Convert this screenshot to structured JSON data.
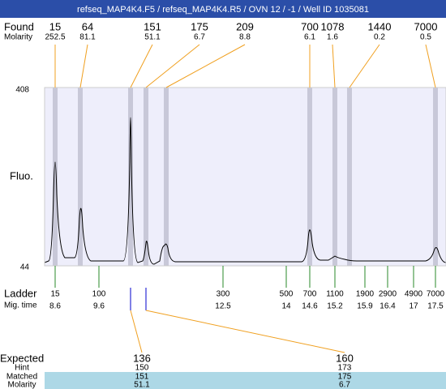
{
  "header": {
    "title": "refseq_MAP4K4.F5 / refseq_MAP4K4.R5 / OVN 12 / -1 / Well ID 1035081"
  },
  "found": {
    "label": "Found",
    "molarity_label": "Molarity",
    "peaks": [
      {
        "size": "15",
        "molarity": "252.5"
      },
      {
        "size": "64",
        "molarity": "81.1"
      },
      {
        "size": "151",
        "molarity": "51.1"
      },
      {
        "size": "175",
        "molarity": "6.7"
      },
      {
        "size": "209",
        "molarity": "8.8"
      },
      {
        "size": "700",
        "molarity": "6.1"
      },
      {
        "size": "1078",
        "molarity": "1.6"
      },
      {
        "size": "1440",
        "molarity": "0.2"
      },
      {
        "size": "7000",
        "molarity": "0.5"
      }
    ]
  },
  "plot": {
    "y_label": "Fluo.",
    "y_top": "408",
    "y_bottom": "44"
  },
  "ladder": {
    "label": "Ladder",
    "time_label": "Mig. time",
    "markers": [
      {
        "size": "15",
        "time": "8.6"
      },
      {
        "size": "100",
        "time": "9.6"
      },
      {
        "size": "300",
        "time": "12.5"
      },
      {
        "size": "500",
        "time": "14"
      },
      {
        "size": "700",
        "time": "14.6"
      },
      {
        "size": "1100",
        "time": "15.2"
      },
      {
        "size": "1900",
        "time": "15.9"
      },
      {
        "size": "2900",
        "time": "16.4"
      },
      {
        "size": "4900",
        "time": "17"
      },
      {
        "size": "7000",
        "time": "17.5"
      }
    ]
  },
  "expected": {
    "labels": [
      "Expected",
      "Hint",
      "Matched",
      "Molarity"
    ],
    "columns": [
      {
        "expected": "136",
        "hint": "150",
        "matched": "151",
        "molarity": "51.1"
      },
      {
        "expected": "160",
        "hint": "173",
        "matched": "175",
        "molarity": "6.7"
      }
    ]
  }
}
